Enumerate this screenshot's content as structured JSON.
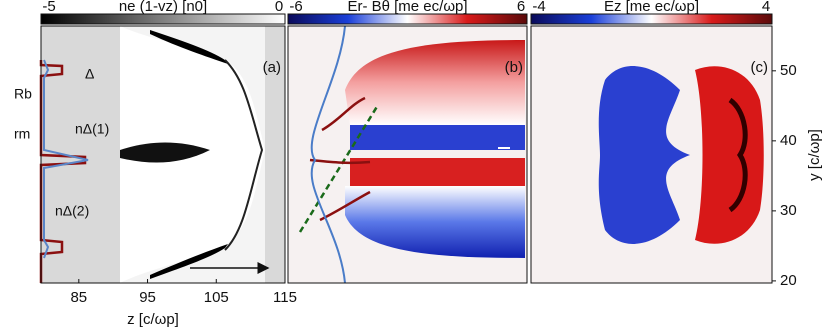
{
  "chart_data": [
    {
      "type": "heatmap",
      "colorbar_label": "ne (1-vz) [n0]",
      "clim": [
        -5,
        0
      ],
      "cticks": [
        -5,
        0
      ],
      "colors": [
        "#000000",
        "#ffffff"
      ],
      "panel_label": "(a)",
      "xlabel": "z [c/ωp]",
      "xlim": [
        79.5,
        115
      ],
      "xticks": [
        85,
        95,
        105,
        115
      ],
      "annotations": [
        "Rb",
        "rm",
        "Δ",
        "nΔ(1)",
        "nΔ(2)"
      ]
    },
    {
      "type": "heatmap",
      "colorbar_label": "Er- Bθ [me ec/ωp]",
      "clim": [
        -6,
        6
      ],
      "cticks": [
        -6,
        6
      ],
      "colors": [
        "#0a0a5a",
        "#1a3fd8",
        "#ffffff",
        "#d81a1a",
        "#5a0a0a"
      ],
      "panel_label": "(b)"
    },
    {
      "type": "heatmap",
      "colorbar_label": "Ez [me ec/ωp]",
      "clim": [
        -4,
        4
      ],
      "cticks": [
        -4,
        4
      ],
      "colors": [
        "#0a0a5a",
        "#1a3fd8",
        "#ffffff",
        "#d81a1a",
        "#5a0a0a"
      ],
      "panel_label": "(c)",
      "ylabel": "y [c/ωp]",
      "ylim": [
        19.7,
        56.4
      ],
      "yticks": [
        20,
        30,
        40,
        50
      ]
    }
  ]
}
